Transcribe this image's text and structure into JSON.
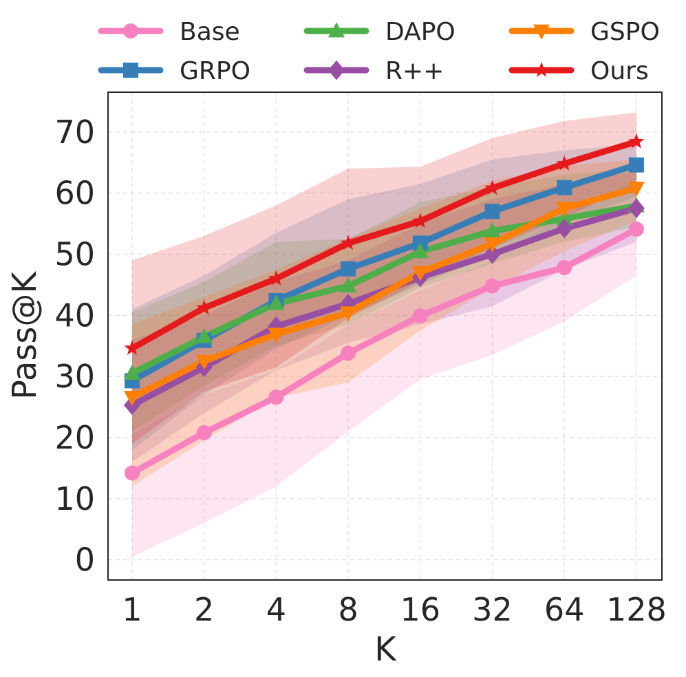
{
  "chart_data": {
    "type": "line",
    "xlabel": "K",
    "ylabel": "Pass@K",
    "categories": [
      "1",
      "2",
      "4",
      "8",
      "16",
      "32",
      "64",
      "128"
    ],
    "yticks": [
      0,
      10,
      20,
      30,
      40,
      50,
      60,
      70
    ],
    "ylim": [
      -3.3,
      76.5
    ],
    "grid": true,
    "legend_position": "top",
    "series": [
      {
        "name": "Base",
        "color": "#f781bf",
        "marker": "circle",
        "values": [
          14.2,
          20.8,
          26.6,
          33.8,
          39.9,
          44.8,
          47.8,
          54.1
        ],
        "band_low": [
          0.5,
          6.0,
          12.0,
          21.0,
          29.5,
          33.5,
          39.0,
          46.5
        ],
        "band_high": [
          20.5,
          27.0,
          31.0,
          38.5,
          44.0,
          49.0,
          56.5,
          62.0
        ]
      },
      {
        "name": "GRPO",
        "color": "#377eb8",
        "marker": "square",
        "values": [
          29.3,
          35.9,
          42.4,
          47.6,
          51.8,
          57.0,
          60.9,
          64.6
        ],
        "band_low": [
          18.0,
          27.0,
          34.5,
          40.0,
          45.0,
          50.0,
          55.0,
          59.5
        ],
        "band_high": [
          41.0,
          46.5,
          53.5,
          59.0,
          61.5,
          65.5,
          67.0,
          68.0
        ]
      },
      {
        "name": "DAPO",
        "color": "#4daf4a",
        "marker": "triangle-up",
        "values": [
          30.5,
          36.5,
          41.9,
          44.8,
          50.4,
          53.8,
          55.8,
          57.9
        ],
        "band_low": [
          21.0,
          28.5,
          35.0,
          38.5,
          44.5,
          48.5,
          52.0,
          54.5
        ],
        "band_high": [
          40.5,
          45.5,
          52.0,
          52.5,
          58.5,
          61.0,
          63.0,
          64.0
        ]
      },
      {
        "name": "R++",
        "color": "#984ea3",
        "marker": "diamond",
        "values": [
          25.3,
          31.5,
          38.2,
          41.9,
          46.2,
          50.0,
          54.2,
          57.5
        ],
        "band_low": [
          16.0,
          24.0,
          31.0,
          35.5,
          38.5,
          41.5,
          47.5,
          52.0
        ],
        "band_high": [
          36.0,
          40.0,
          45.5,
          49.0,
          55.0,
          59.0,
          61.5,
          63.5
        ]
      },
      {
        "name": "GSPO",
        "color": "#ff7f00",
        "marker": "triangle-down",
        "values": [
          26.6,
          32.5,
          36.9,
          40.4,
          47.0,
          51.7,
          57.5,
          60.8
        ],
        "band_low": [
          12.0,
          19.5,
          26.5,
          29.0,
          37.5,
          44.5,
          50.5,
          55.5
        ],
        "band_high": [
          38.5,
          43.0,
          47.5,
          52.5,
          57.5,
          62.0,
          64.5,
          65.5
        ]
      },
      {
        "name": "Ours",
        "color": "#e41a1c",
        "marker": "star",
        "values": [
          34.6,
          41.2,
          46.0,
          51.8,
          55.4,
          60.8,
          64.8,
          68.4
        ],
        "band_low": [
          19.0,
          27.5,
          31.5,
          39.5,
          45.5,
          51.0,
          56.0,
          61.5
        ],
        "band_high": [
          49.0,
          53.0,
          58.0,
          64.0,
          64.3,
          69.0,
          71.8,
          73.2
        ]
      }
    ]
  }
}
